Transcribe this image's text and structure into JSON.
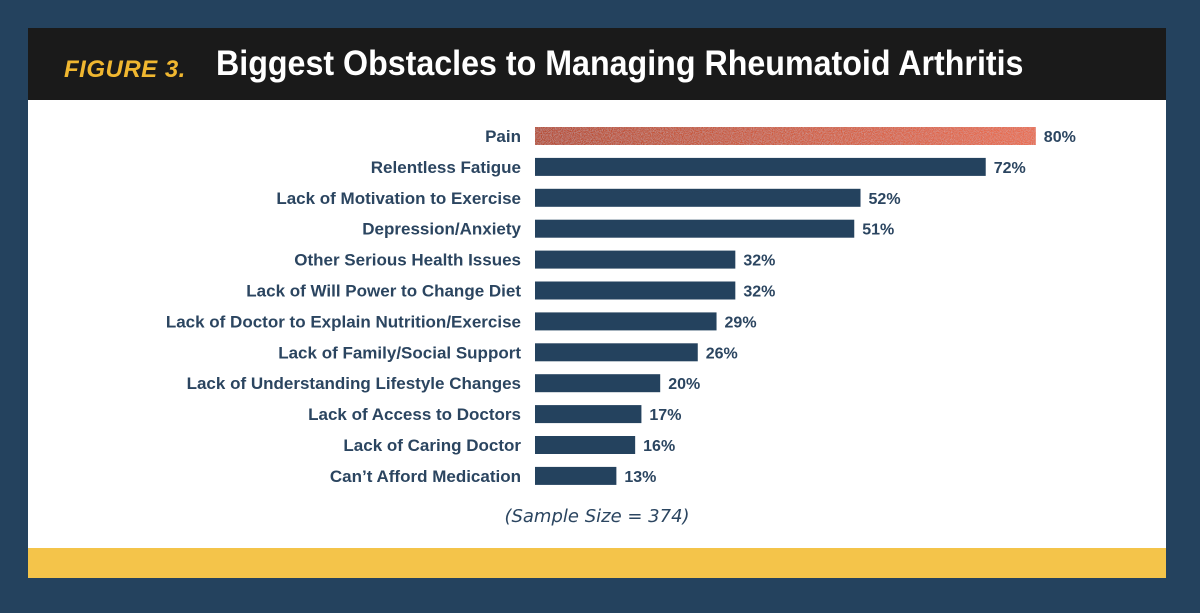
{
  "figure_label": "FIGURE 3.",
  "footnote": "(Sample Size = 374)",
  "colors": {
    "background": "#24425e",
    "header": "#1a1a1a",
    "label_gold": "#f0b730",
    "bar": "#24425e",
    "highlight": "#e8674a",
    "footer": "#f4c44a"
  },
  "chart_data": {
    "type": "bar",
    "orientation": "horizontal",
    "title": "Biggest Obstacles to Managing Rheumatoid Arthritis",
    "xlabel": "",
    "ylabel": "",
    "xlim": [
      0,
      100
    ],
    "grid": false,
    "legend": "none",
    "highlight_index": 0,
    "categories": [
      "Pain",
      "Relentless Fatigue",
      "Lack of Motivation to Exercise",
      "Depression/Anxiety",
      "Other Serious Health Issues",
      "Lack of Will Power to Change Diet",
      "Lack of Doctor to Explain Nutrition/Exercise",
      "Lack of Family/Social Support",
      "Lack of Understanding Lifestyle Changes",
      "Lack of Access to Doctors",
      "Lack of Caring Doctor",
      "Can’t Afford Medication"
    ],
    "values": [
      80,
      72,
      52,
      51,
      32,
      32,
      29,
      26,
      20,
      17,
      16,
      13
    ],
    "value_labels": [
      "80%",
      "72%",
      "52%",
      "51%",
      "32%",
      "32%",
      "29%",
      "26%",
      "20%",
      "17%",
      "16%",
      "13%"
    ]
  }
}
